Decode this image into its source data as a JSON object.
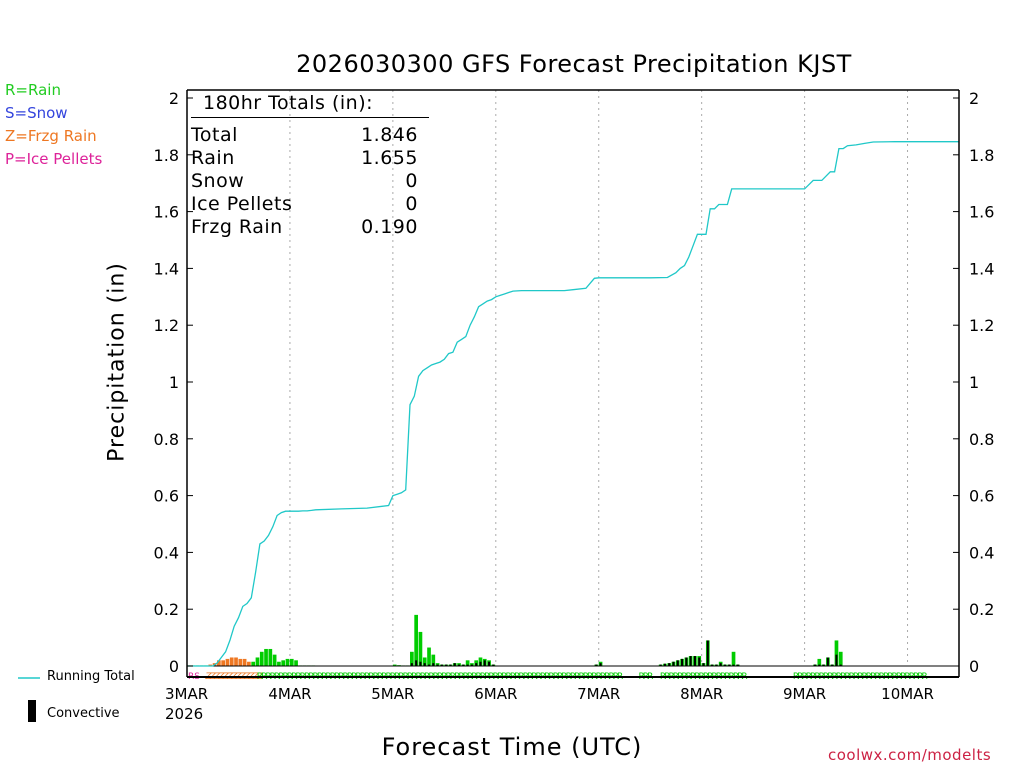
{
  "title": "2026030300 GFS Forecast Precipitation KJST",
  "legend_keys": {
    "rain": "R=Rain",
    "snow": "S=Snow",
    "frzg_rain": "Z=Frzg Rain",
    "ice_pellets": "P=Ice Pellets"
  },
  "totals_box": {
    "header": "180hr Totals (in):",
    "rows": [
      {
        "label": "Total",
        "value": "1.846"
      },
      {
        "label": "Rain",
        "value": "1.655"
      },
      {
        "label": "Snow",
        "value": "0"
      },
      {
        "label": "Ice Pellets",
        "value": "0"
      },
      {
        "label": "Frzg Rain",
        "value": "0.190"
      }
    ]
  },
  "bottom_legend": {
    "running_total": "Running Total",
    "convective": "Convective"
  },
  "credit": "coolwx.com/modelts",
  "colors": {
    "running_total": "#20c8c8",
    "rain": "#00cc00",
    "frzg_rain": "#ee7722",
    "snow": "#3344dd",
    "ice_pellets": "#dd2299",
    "convective": "#000000",
    "grid": "#aaaaaa"
  },
  "chart_data": {
    "type": "bar+line",
    "title": "2026030300 GFS Forecast Precipitation KJST",
    "xlabel": "Forecast Time (UTC)",
    "ylabel": "Precipitation (in)",
    "ylim": [
      0,
      2
    ],
    "yticks": [
      0,
      0.2,
      0.4,
      0.6,
      0.8,
      1,
      1.2,
      1.4,
      1.6,
      1.8,
      2
    ],
    "ytick_labels": [
      "0",
      "0.2",
      "0.4",
      "0.6",
      "0.8",
      "1",
      "1.2",
      "1.4",
      "1.6",
      "1.8",
      "2"
    ],
    "xlim_hours": [
      0,
      180
    ],
    "xticks": [
      {
        "hour": 0,
        "label": "3MAR",
        "sublabel": "2026"
      },
      {
        "hour": 24,
        "label": "4MAR"
      },
      {
        "hour": 48,
        "label": "5MAR"
      },
      {
        "hour": 72,
        "label": "6MAR"
      },
      {
        "hour": 96,
        "label": "7MAR"
      },
      {
        "hour": 120,
        "label": "8MAR"
      },
      {
        "hour": 144,
        "label": "9MAR"
      },
      {
        "hour": 168,
        "label": "10MAR"
      }
    ],
    "running_total": {
      "name": "Running Total",
      "hours": [
        0,
        6,
        7,
        8,
        9,
        10,
        11,
        12,
        13,
        14,
        15,
        16,
        17,
        18,
        19,
        20,
        21,
        22,
        23,
        24,
        25,
        26,
        27,
        28,
        29,
        30,
        36,
        42,
        47,
        48,
        49,
        50,
        51,
        52,
        53,
        54,
        55,
        56,
        57,
        58,
        59,
        60,
        61,
        62,
        63,
        64,
        65,
        66,
        67,
        68,
        69,
        70,
        71,
        72,
        73,
        74,
        75,
        76,
        78,
        80,
        82,
        84,
        86,
        88,
        90,
        93,
        95,
        96,
        98,
        99,
        102,
        108,
        112,
        114,
        115,
        116,
        117,
        118,
        119,
        120,
        121,
        122,
        123,
        124,
        125,
        126,
        127,
        128,
        130,
        135,
        140,
        144,
        146,
        147,
        148,
        150,
        151,
        152,
        153,
        154,
        156,
        158,
        160,
        165,
        170,
        175,
        180
      ],
      "values": [
        0.0,
        0.0,
        0.01,
        0.03,
        0.05,
        0.09,
        0.14,
        0.17,
        0.21,
        0.22,
        0.24,
        0.33,
        0.43,
        0.44,
        0.46,
        0.49,
        0.53,
        0.54,
        0.545,
        0.545,
        0.545,
        0.545,
        0.546,
        0.546,
        0.548,
        0.55,
        0.553,
        0.556,
        0.565,
        0.6,
        0.605,
        0.61,
        0.62,
        0.92,
        0.95,
        1.02,
        1.04,
        1.05,
        1.06,
        1.065,
        1.07,
        1.08,
        1.1,
        1.105,
        1.14,
        1.15,
        1.16,
        1.2,
        1.23,
        1.265,
        1.275,
        1.285,
        1.29,
        1.3,
        1.305,
        1.31,
        1.315,
        1.32,
        1.322,
        1.322,
        1.322,
        1.322,
        1.322,
        1.322,
        1.325,
        1.33,
        1.365,
        1.367,
        1.367,
        1.367,
        1.367,
        1.367,
        1.368,
        1.385,
        1.4,
        1.41,
        1.44,
        1.48,
        1.52,
        1.52,
        1.52,
        1.61,
        1.61,
        1.625,
        1.625,
        1.625,
        1.68,
        1.68,
        1.68,
        1.68,
        1.68,
        1.68,
        1.71,
        1.71,
        1.71,
        1.74,
        1.74,
        1.822,
        1.822,
        1.832,
        1.835,
        1.84,
        1.845,
        1.846,
        1.846,
        1.846,
        1.846
      ]
    },
    "bars": {
      "hours": [
        1,
        2,
        3,
        4,
        5,
        6,
        7,
        8,
        9,
        10,
        11,
        12,
        13,
        14,
        15,
        16,
        17,
        18,
        19,
        20,
        21,
        22,
        23,
        24,
        25,
        26,
        27,
        28,
        29,
        30,
        49,
        50,
        51,
        52,
        53,
        54,
        55,
        56,
        57,
        58,
        59,
        60,
        61,
        62,
        63,
        64,
        65,
        66,
        67,
        68,
        69,
        70,
        71,
        72,
        96,
        97,
        111,
        112,
        113,
        114,
        115,
        116,
        117,
        118,
        119,
        120,
        121,
        122,
        123,
        124,
        125,
        126,
        127,
        128,
        129,
        147,
        148,
        149,
        150,
        151,
        152,
        153
      ],
      "types": [
        "R",
        "R",
        "R",
        "R",
        "R",
        "Z",
        "Z",
        "Z",
        "Z",
        "Z",
        "Z",
        "Z",
        "Z",
        "Z",
        "Z",
        "R",
        "R",
        "R",
        "R",
        "R",
        "R",
        "R",
        "R",
        "R",
        "R",
        "R",
        "R",
        "R",
        "R",
        "R",
        "R",
        "R",
        "R",
        "R",
        "R",
        "R",
        "R",
        "R",
        "R",
        "R",
        "R",
        "R",
        "R",
        "R",
        "R",
        "R",
        "R",
        "R",
        "R",
        "R",
        "R",
        "R",
        "R",
        "R",
        "R",
        "R",
        "R",
        "R",
        "R",
        "R",
        "R",
        "R",
        "R",
        "R",
        "R",
        "R",
        "R",
        "R",
        "R",
        "R",
        "R",
        "R",
        "R",
        "R",
        "R",
        "R",
        "R",
        "R",
        "R",
        "R",
        "R",
        "R"
      ],
      "values": [
        0.002,
        0.002,
        0.002,
        0.002,
        0.002,
        0.005,
        0.01,
        0.02,
        0.02,
        0.025,
        0.03,
        0.03,
        0.025,
        0.025,
        0.015,
        0.015,
        0.03,
        0.05,
        0.06,
        0.06,
        0.04,
        0.015,
        0.02,
        0.025,
        0.025,
        0.02,
        0.002,
        0.002,
        0.002,
        0.002,
        0.005,
        0.003,
        0.002,
        0.002,
        0.05,
        0.18,
        0.12,
        0.03,
        0.065,
        0.04,
        0.01,
        0.005,
        0.005,
        0.005,
        0.01,
        0.01,
        0.005,
        0.02,
        0.01,
        0.02,
        0.03,
        0.025,
        0.02,
        0.005,
        0.005,
        0.015,
        0.005,
        0.008,
        0.01,
        0.015,
        0.02,
        0.025,
        0.03,
        0.035,
        0.035,
        0.035,
        0.01,
        0.09,
        0.005,
        0.005,
        0.015,
        0.005,
        0.005,
        0.05,
        0.005,
        0.005,
        0.025,
        0.005,
        0.03,
        0.005,
        0.09,
        0.05
      ],
      "convective": [
        0,
        0,
        0,
        0,
        0,
        0,
        0,
        0,
        0,
        0,
        0,
        0,
        0,
        0,
        0,
        0,
        0,
        0,
        0,
        0,
        0,
        0,
        0,
        0,
        0,
        0,
        0,
        0,
        0,
        0,
        0,
        0,
        0,
        0,
        0.01,
        0.02,
        0.015,
        0.01,
        0.005,
        0.01,
        0.005,
        0.005,
        0.005,
        0.005,
        0.01,
        0.005,
        0.005,
        0.005,
        0.005,
        0.01,
        0.015,
        0.02,
        0.015,
        0.005,
        0.005,
        0.01,
        0.005,
        0.008,
        0.01,
        0.015,
        0.02,
        0.025,
        0.03,
        0.035,
        0.035,
        0.03,
        0.01,
        0.09,
        0.005,
        0.005,
        0.01,
        0.005,
        0.005,
        0.005,
        0.005,
        0.005,
        0.005,
        0.005,
        0.03,
        0.005,
        0.04,
        0.005
      ]
    },
    "ptype_markers": {
      "symbol_rain": "R",
      "symbol_snow": "S",
      "symbol_frzg_rain": "Z",
      "symbol_ice_pellets": "P",
      "start_marker": "RS",
      "zr_hours": [
        5,
        6,
        7,
        8,
        9,
        10,
        11,
        12,
        13,
        14,
        15,
        16,
        17
      ],
      "rain_hours": [
        17,
        18,
        19,
        20,
        21,
        22,
        23,
        24,
        25,
        26,
        27,
        28,
        29,
        30,
        31,
        32,
        33,
        34,
        35,
        36,
        37,
        38,
        39,
        40,
        41,
        42,
        43,
        44,
        45,
        46,
        47,
        48,
        49,
        50,
        51,
        52,
        53,
        54,
        55,
        56,
        57,
        58,
        59,
        60,
        61,
        62,
        63,
        64,
        65,
        66,
        67,
        68,
        69,
        70,
        71,
        72,
        73,
        74,
        75,
        76,
        77,
        78,
        79,
        80,
        81,
        82,
        83,
        84,
        85,
        86,
        87,
        88,
        89,
        90,
        91,
        92,
        93,
        94,
        95,
        96,
        97,
        98,
        99,
        100,
        101,
        106,
        107,
        108,
        111,
        112,
        113,
        114,
        115,
        116,
        117,
        118,
        119,
        120,
        121,
        122,
        123,
        124,
        125,
        126,
        127,
        128,
        129,
        130,
        142,
        143,
        144,
        145,
        146,
        147,
        148,
        149,
        150,
        151,
        152,
        153,
        154,
        155,
        156,
        157,
        158,
        159,
        160,
        161,
        162,
        163,
        164,
        165,
        166,
        167,
        168,
        169,
        170,
        171,
        172
      ]
    }
  }
}
